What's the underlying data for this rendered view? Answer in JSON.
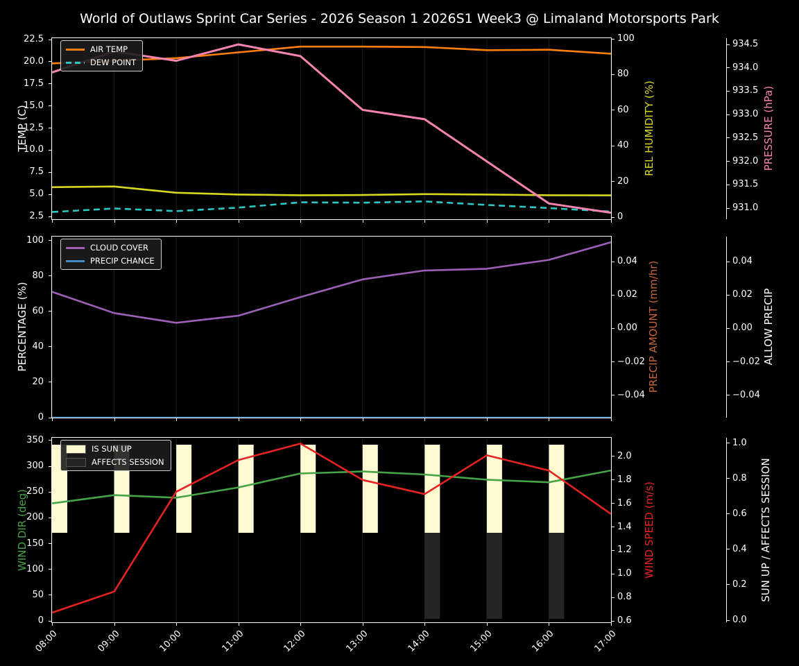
{
  "title": "World of Outlaws Sprint Car Series - 2026 Season 1 2026S1 Week3 @ Limaland Motorsports Park",
  "x_labels": [
    "08:00",
    "09:00",
    "10:00",
    "11:00",
    "12:00",
    "13:00",
    "14:00",
    "15:00",
    "16:00",
    "17:00"
  ],
  "colors": {
    "background": "#000000",
    "foreground": "#ffffff",
    "grid": "#1f1f1f",
    "air_temp": "#ff7f0e",
    "dew_point": "#2dc6c6",
    "rel_humidity": "#d8d822",
    "pressure": "#f784b0",
    "cloud_cover": "#9d5fb8",
    "precip_chance": "#4489cc",
    "precip_amount": "#c4653a",
    "wind_dir": "#46a346",
    "wind_speed": "#e62222",
    "sun_up_bar": "#fdf9d0",
    "affects_session_bar": "#252525"
  },
  "panels": [
    {
      "name": "temperature-panel",
      "left_axis": {
        "label": "TEMP (C)",
        "color": "#ffffff",
        "dp": 1,
        "ticks": [
          22.5,
          20.0,
          17.5,
          15.0,
          12.5,
          10.0,
          7.5,
          5.0,
          2.5
        ],
        "scale": "temp"
      },
      "right_axis_1": {
        "label": "REL HUMIDITY (%)",
        "color": "#d8d822",
        "dp": 0,
        "ticks": [
          100,
          80,
          60,
          40,
          20,
          0
        ],
        "scale": "humidity"
      },
      "right_axis_2": {
        "label": "PRESSURE (hPa)",
        "color": "#f784b0",
        "dp": 1,
        "ticks": [
          934.5,
          934.0,
          933.5,
          933.0,
          932.5,
          932.0,
          931.5,
          931.0
        ],
        "scale": "pressure"
      },
      "legend": [
        {
          "label": "AIR TEMP",
          "swatch": "line",
          "color": "#ff7f0e"
        },
        {
          "label": "DEW POINT",
          "swatch": "dashed",
          "color": "#2dc6c6"
        }
      ]
    },
    {
      "name": "precipitation-panel",
      "left_axis": {
        "label": "PERCENTAGE (%)",
        "color": "#ffffff",
        "dp": 0,
        "ticks": [
          100,
          80,
          60,
          40,
          20,
          0
        ],
        "scale": "pct"
      },
      "right_axis_1": {
        "label": "PRECIP AMOUNT (mm/hr)",
        "color": "#c4653a",
        "dp": 2,
        "ticks": [
          0.04,
          0.02,
          0.0,
          -0.02,
          -0.04
        ],
        "scale": "amount"
      },
      "right_axis_2": {
        "label": "ALLOW PRECIP",
        "color": "#ffffff",
        "dp": 2,
        "ticks": [
          0.04,
          0.02,
          0.0,
          -0.02,
          -0.04
        ],
        "scale": "amount"
      },
      "legend": [
        {
          "label": "CLOUD COVER",
          "swatch": "line",
          "color": "#9d5fb8"
        },
        {
          "label": "PRECIP CHANCE",
          "swatch": "line",
          "color": "#4489cc"
        }
      ]
    },
    {
      "name": "wind-panel",
      "left_axis": {
        "label": "WIND DIR (deg)",
        "color": "#46a346",
        "dp": 0,
        "ticks": [
          350,
          300,
          250,
          200,
          150,
          100,
          50,
          0
        ],
        "scale": "deg"
      },
      "right_axis_1": {
        "label": "WIND SPEED (m/s)",
        "color": "#e62222",
        "dp": 1,
        "ticks": [
          2.0,
          1.8,
          1.6,
          1.4,
          1.2,
          1.0,
          0.8,
          0.6
        ],
        "scale": "speed"
      },
      "right_axis_2": {
        "label": "SUN UP / AFFECTS SESSION",
        "color": "#ffffff",
        "dp": 1,
        "ticks": [
          1.0,
          0.8,
          0.6,
          0.4,
          0.2,
          0.0
        ],
        "scale": "sun"
      },
      "legend": [
        {
          "label": "IS SUN UP",
          "swatch": "patch",
          "color": "#fdf9d0"
        },
        {
          "label": "AFFECTS SESSION",
          "swatch": "patch",
          "color": "#252525"
        }
      ]
    }
  ],
  "chart_data": [
    {
      "type": "line",
      "x": [
        "08:00",
        "09:00",
        "10:00",
        "11:00",
        "12:00",
        "13:00",
        "14:00",
        "15:00",
        "16:00",
        "17:00"
      ],
      "axis_ranges": {
        "temp": [
          2.5,
          22.5
        ],
        "humidity": [
          0,
          100
        ],
        "pressure": [
          931.0,
          934.5
        ]
      },
      "series": [
        {
          "name": "AIR TEMP",
          "axis": "temp",
          "color": "#ff7f0e",
          "style": "solid",
          "values": [
            19.8,
            20.1,
            20.4,
            21.05,
            21.7,
            21.7,
            21.65,
            21.3,
            21.35,
            20.9
          ]
        },
        {
          "name": "DEW POINT",
          "axis": "temp",
          "color": "#2dc6c6",
          "style": "dashed",
          "values": [
            3.0,
            3.4,
            3.1,
            3.5,
            4.1,
            4.05,
            4.2,
            3.8,
            3.45,
            3.05
          ]
        },
        {
          "name": "REL HUMIDITY",
          "axis": "humidity",
          "color": "#d8d822",
          "style": "solid",
          "values": [
            16.8,
            17.2,
            13.7,
            12.7,
            12.3,
            12.4,
            12.9,
            12.7,
            12.3,
            12.2
          ]
        },
        {
          "name": "PRESSURE",
          "axis": "pressure",
          "color": "#f784b0",
          "style": "solid",
          "values": [
            933.9,
            934.35,
            934.15,
            934.5,
            934.25,
            933.1,
            932.9,
            932.0,
            931.1,
            930.9
          ]
        }
      ]
    },
    {
      "type": "line",
      "x": [
        "08:00",
        "09:00",
        "10:00",
        "11:00",
        "12:00",
        "13:00",
        "14:00",
        "15:00",
        "16:00",
        "17:00"
      ],
      "axis_ranges": {
        "pct": [
          0,
          100
        ],
        "amount": [
          -0.04,
          0.04
        ]
      },
      "series": [
        {
          "name": "CLOUD COVER",
          "axis": "pct",
          "color": "#9d5fb8",
          "style": "solid",
          "values": [
            71,
            59,
            53.5,
            57.5,
            68,
            78,
            83,
            84,
            89,
            99
          ]
        },
        {
          "name": "PRECIP CHANCE",
          "axis": "pct",
          "color": "#4489cc",
          "style": "solid",
          "values": [
            0,
            0,
            0,
            0,
            0,
            0,
            0,
            0,
            0,
            0
          ]
        }
      ]
    },
    {
      "type": "line+bar",
      "x": [
        "08:00",
        "09:00",
        "10:00",
        "11:00",
        "12:00",
        "13:00",
        "14:00",
        "15:00",
        "16:00",
        "17:00"
      ],
      "axis_ranges": {
        "deg": [
          0,
          350
        ],
        "speed": [
          0.6,
          2.0
        ],
        "sun": [
          0,
          1
        ]
      },
      "bars": [
        {
          "name": "IS SUN UP",
          "color": "#fdf9d0",
          "values": [
            1,
            1,
            1,
            1,
            1,
            1,
            1,
            1,
            1,
            0
          ]
        },
        {
          "name": "AFFECTS SESSION",
          "color": "#252525",
          "values": [
            0,
            0,
            0,
            0,
            0,
            0,
            1,
            1,
            1,
            0
          ]
        }
      ],
      "series": [
        {
          "name": "WIND DIR",
          "axis": "deg",
          "color": "#46a346",
          "style": "solid",
          "values": [
            228,
            244,
            239,
            259,
            286,
            290,
            284,
            274,
            269,
            292
          ]
        },
        {
          "name": "WIND SPEED",
          "axis": "speed",
          "color": "#e62222",
          "style": "solid",
          "values": [
            0.67,
            0.85,
            1.7,
            1.97,
            2.11,
            1.8,
            1.68,
            2.01,
            1.88,
            1.51
          ]
        }
      ]
    }
  ]
}
